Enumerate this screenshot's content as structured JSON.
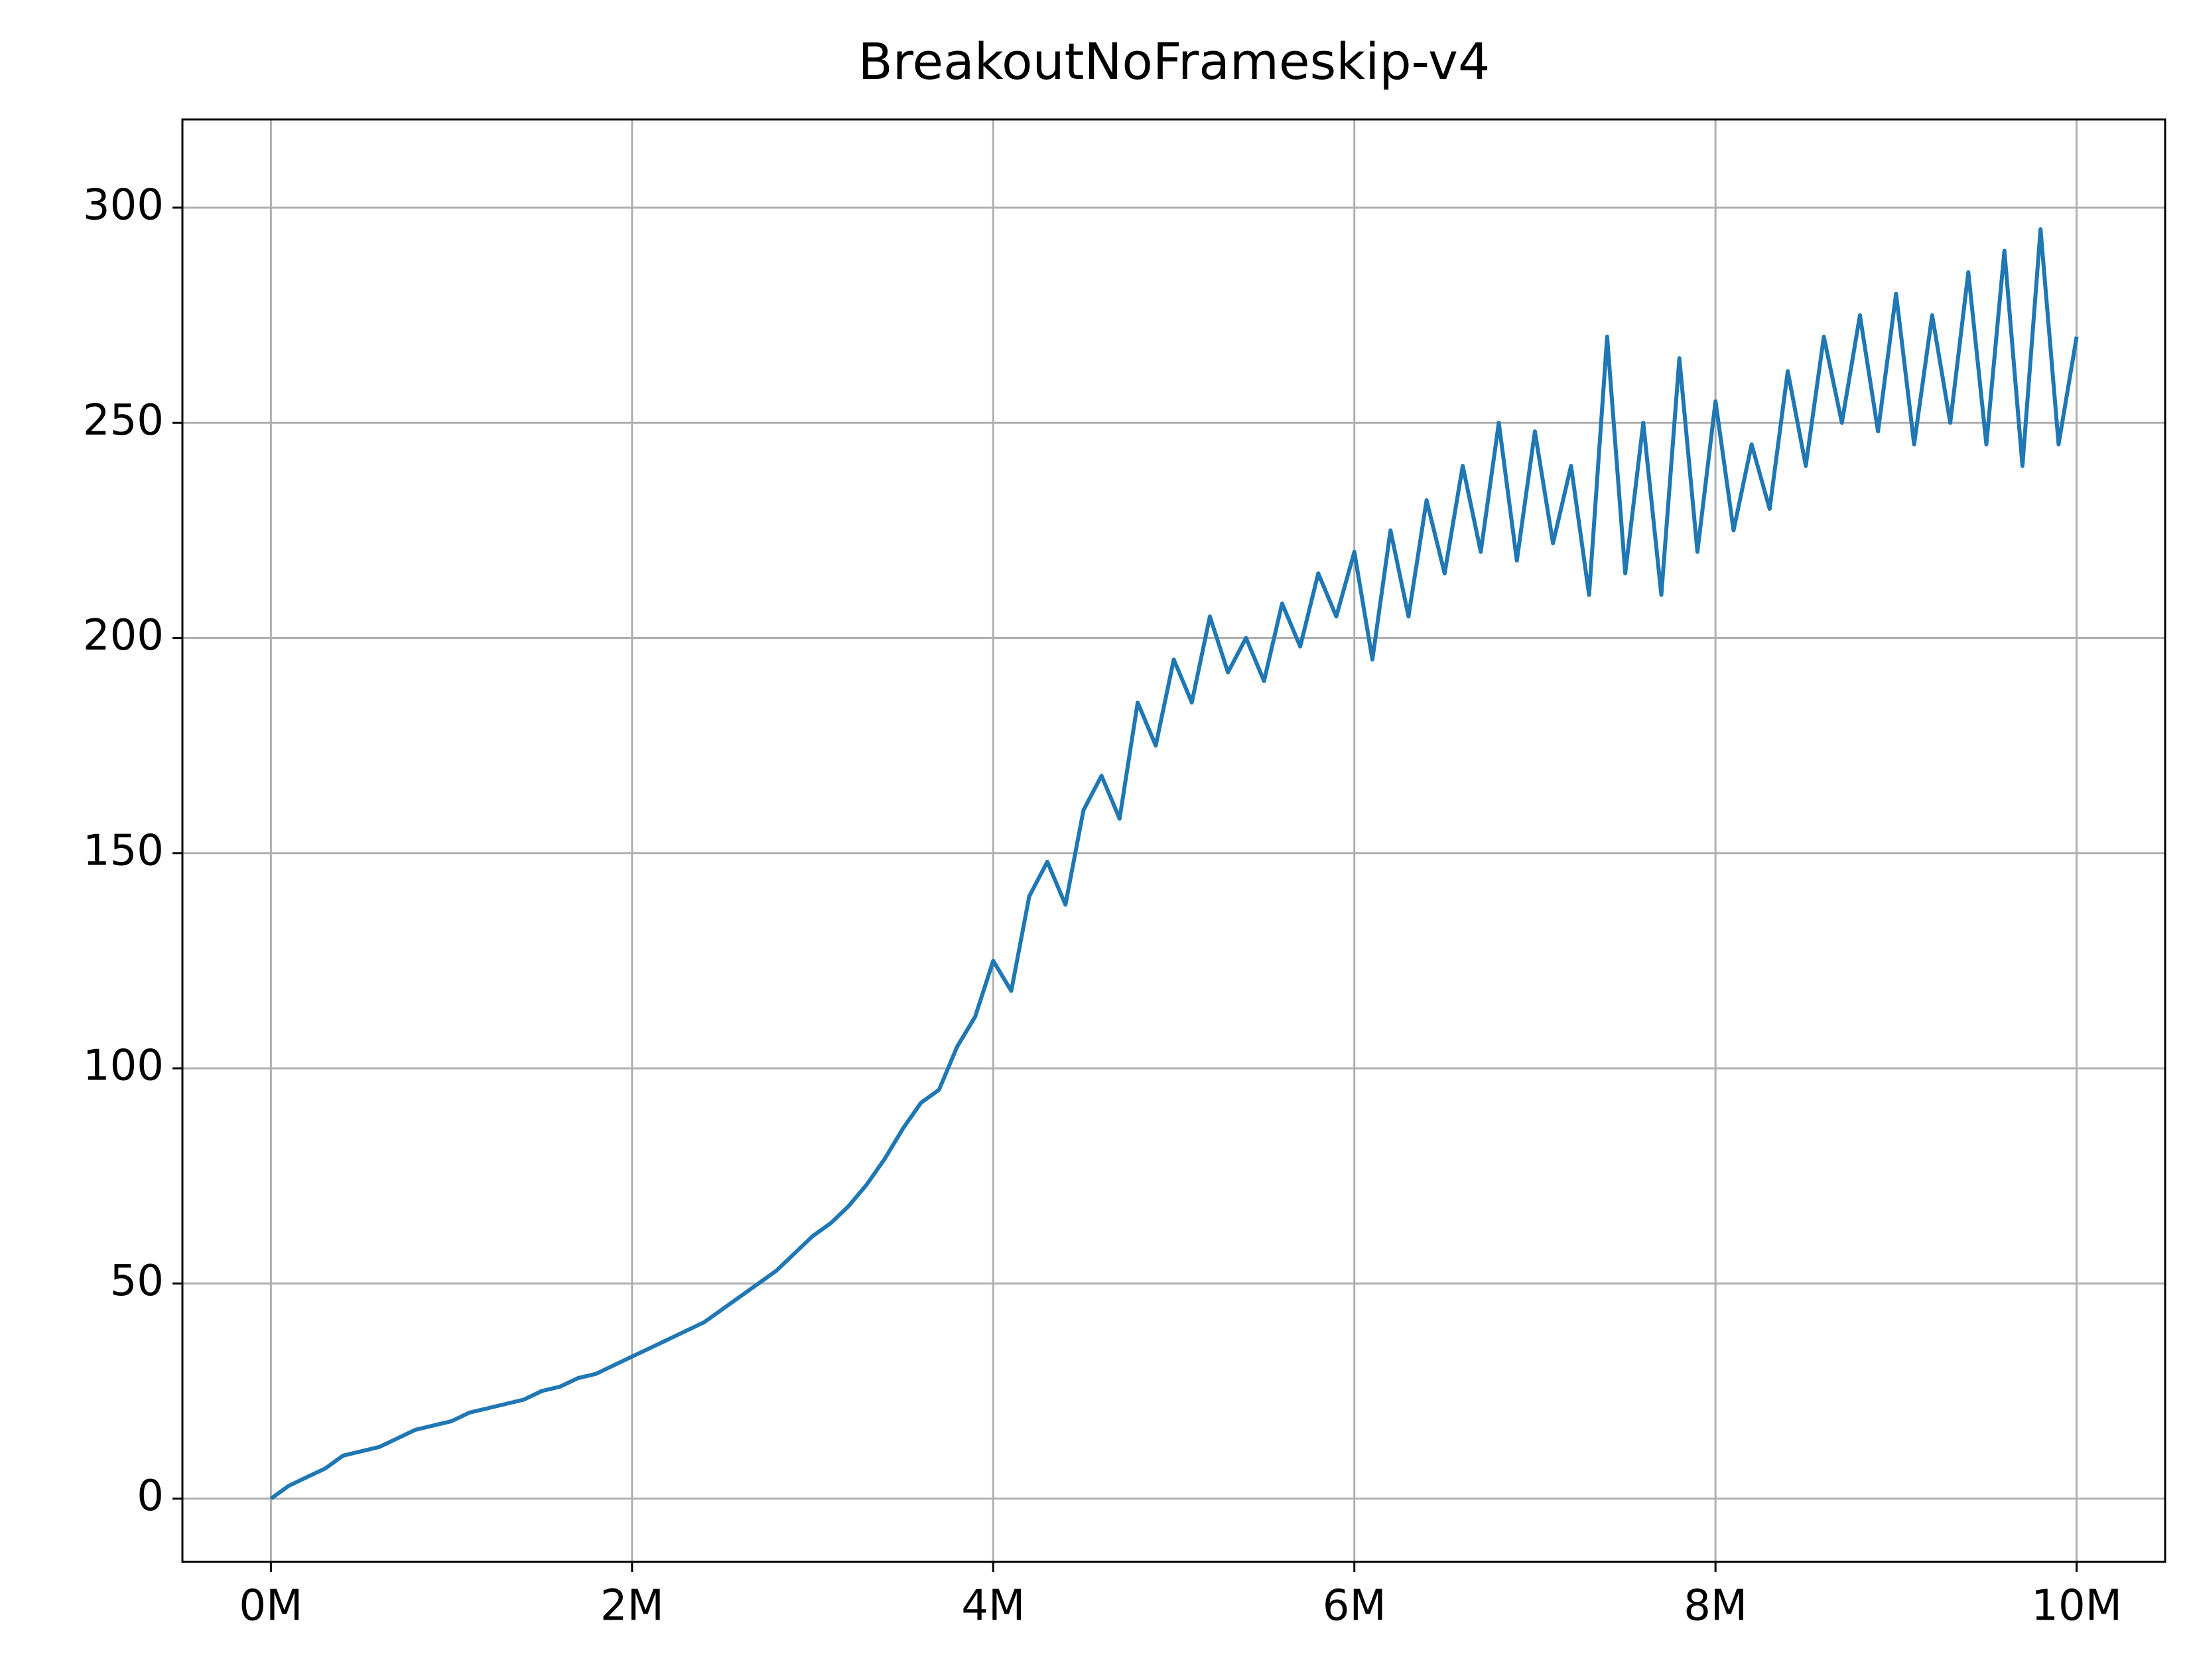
{
  "chart_data": {
    "type": "line",
    "title": "BreakoutNoFrameskip-v4",
    "x": [
      0,
      100000,
      200000,
      300000,
      400000,
      500000,
      600000,
      700000,
      800000,
      900000,
      1000000,
      1100000,
      1200000,
      1300000,
      1400000,
      1500000,
      1600000,
      1700000,
      1800000,
      1900000,
      2000000,
      2100000,
      2200000,
      2300000,
      2400000,
      2500000,
      2600000,
      2700000,
      2800000,
      2900000,
      3000000,
      3100000,
      3200000,
      3300000,
      3400000,
      3500000,
      3600000,
      3700000,
      3800000,
      3900000,
      4000000,
      4100000,
      4200000,
      4300000,
      4400000,
      4500000,
      4600000,
      4700000,
      4800000,
      4900000,
      5000000,
      5100000,
      5200000,
      5300000,
      5400000,
      5500000,
      5600000,
      5700000,
      5800000,
      5900000,
      6000000,
      6100000,
      6200000,
      6300000,
      6400000,
      6500000,
      6600000,
      6700000,
      6800000,
      6900000,
      7000000,
      7100000,
      7200000,
      7300000,
      7400000,
      7500000,
      7600000,
      7700000,
      7800000,
      7900000,
      8000000,
      8100000,
      8200000,
      8300000,
      8400000,
      8500000,
      8600000,
      8700000,
      8800000,
      8900000,
      9000000,
      9100000,
      9200000,
      9300000,
      9400000,
      9500000,
      9600000,
      9700000,
      9800000,
      9900000,
      10000000
    ],
    "series": [
      {
        "name": "BreakoutNoFrameskip-v4",
        "color": "#1f77b4",
        "values": [
          0,
          3,
          5,
          7,
          10,
          11,
          12,
          14,
          16,
          17,
          18,
          20,
          21,
          22,
          23,
          25,
          26,
          28,
          29,
          31,
          33,
          35,
          37,
          39,
          41,
          44,
          47,
          50,
          53,
          57,
          61,
          64,
          68,
          73,
          79,
          86,
          92,
          95,
          105,
          112,
          125,
          118,
          140,
          148,
          138,
          160,
          168,
          158,
          185,
          175,
          195,
          185,
          205,
          192,
          200,
          190,
          208,
          198,
          215,
          205,
          220,
          195,
          225,
          205,
          232,
          215,
          240,
          220,
          250,
          218,
          248,
          222,
          240,
          210,
          270,
          215,
          250,
          210,
          265,
          220,
          255,
          225,
          245,
          230,
          262,
          240,
          270,
          250,
          275,
          248,
          280,
          245,
          275,
          250,
          285,
          245,
          290,
          240,
          295,
          245,
          270
        ]
      }
    ],
    "xlim": [
      -490000,
      10490000
    ],
    "xticks": [
      {
        "value": 0,
        "label": "0M"
      },
      {
        "value": 2000000,
        "label": "2M"
      },
      {
        "value": 4000000,
        "label": "4M"
      },
      {
        "value": 6000000,
        "label": "6M"
      },
      {
        "value": 8000000,
        "label": "8M"
      },
      {
        "value": 10000000,
        "label": "10M"
      }
    ],
    "ylim": [
      -14.7,
      320.5
    ],
    "yticks": [
      0,
      50,
      100,
      150,
      200,
      250,
      300
    ],
    "grid": true
  }
}
